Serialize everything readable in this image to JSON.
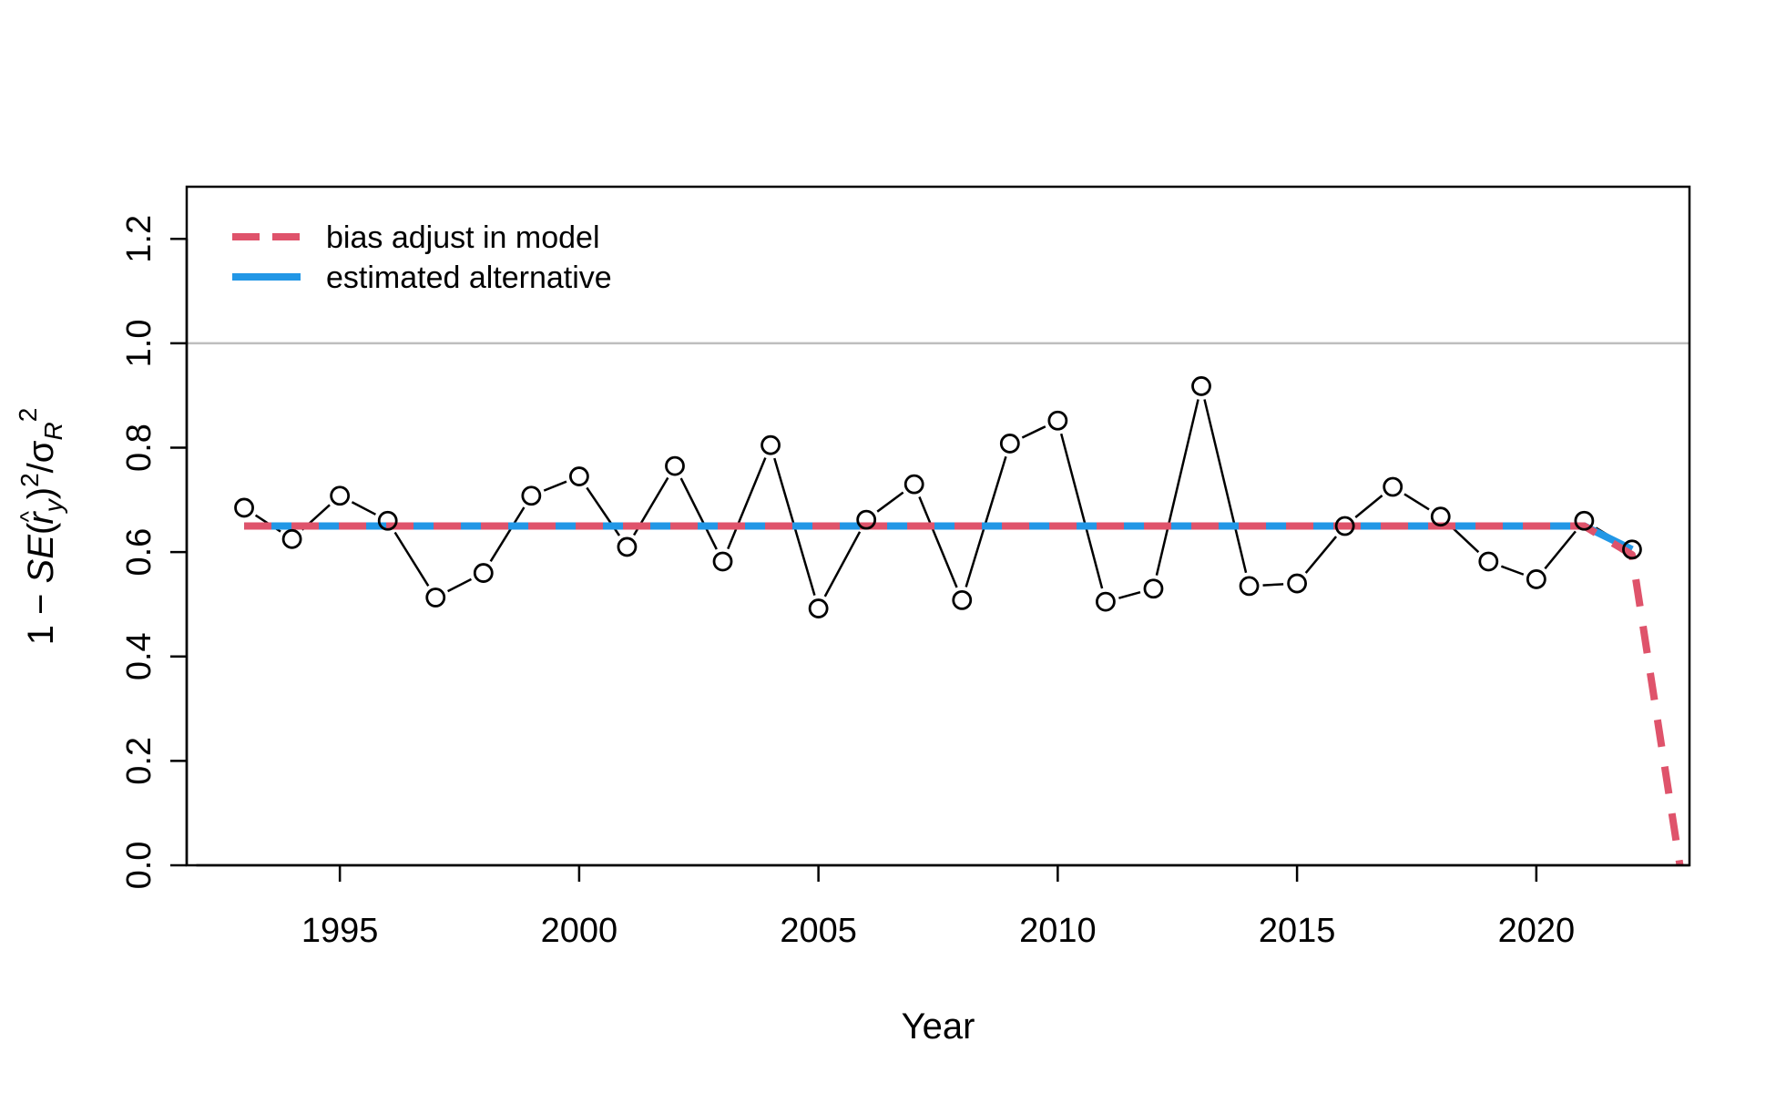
{
  "chart_data": {
    "type": "line",
    "xlabel": "Year",
    "ylabel_parts": {
      "prefix": "1 − ",
      "se": "SE",
      "open_paren": "(",
      "hat": "^",
      "r": "r",
      "r_sub": "y",
      "close_paren": ")",
      "power": "2",
      "slash": "/σ",
      "sigma_sub": "R",
      "sigma_power": "2"
    },
    "xlim": [
      1991.8,
      2023.2
    ],
    "ylim": [
      0,
      1.3
    ],
    "x_ticks": [
      1995,
      2000,
      2005,
      2010,
      2015,
      2020
    ],
    "x_tick_labels": [
      "1995",
      "2000",
      "2005",
      "2010",
      "2015",
      "2020"
    ],
    "y_ticks": [
      0,
      0.2,
      0.4,
      0.6,
      0.8,
      1.0,
      1.2
    ],
    "y_tick_labels": [
      "0.0",
      "0.2",
      "0.4",
      "0.6",
      "0.8",
      "1.0",
      "1.2"
    ],
    "reference_line": {
      "y": 1.0,
      "color": "#bebebe"
    },
    "points": {
      "style": "open-circle-with-line",
      "color": "#000000",
      "x": [
        1993,
        1994,
        1995,
        1996,
        1997,
        1998,
        1999,
        2000,
        2001,
        2002,
        2003,
        2004,
        2005,
        2006,
        2007,
        2008,
        2009,
        2010,
        2011,
        2012,
        2013,
        2014,
        2015,
        2016,
        2017,
        2018,
        2019,
        2020,
        2021,
        2022
      ],
      "y": [
        0.685,
        0.625,
        0.708,
        0.66,
        0.513,
        0.56,
        0.708,
        0.745,
        0.61,
        0.765,
        0.582,
        0.805,
        0.492,
        0.662,
        0.73,
        0.508,
        0.808,
        0.852,
        0.505,
        0.53,
        0.918,
        0.535,
        0.54,
        0.65,
        0.725,
        0.668,
        0.582,
        0.548,
        0.66,
        0.605
      ]
    },
    "series": [
      {
        "name": "bias adjust in model",
        "color": "#df536b",
        "style": "dashed",
        "x": [
          1993,
          2021,
          2022,
          2023
        ],
        "y": [
          0.65,
          0.65,
          0.595,
          0
        ]
      },
      {
        "name": "estimated alternative",
        "color": "#2297e6",
        "style": "solid",
        "x": [
          1993,
          2021,
          2022
        ],
        "y": [
          0.65,
          0.65,
          0.605
        ]
      }
    ],
    "legend": {
      "position": "top-left",
      "box": false
    }
  }
}
